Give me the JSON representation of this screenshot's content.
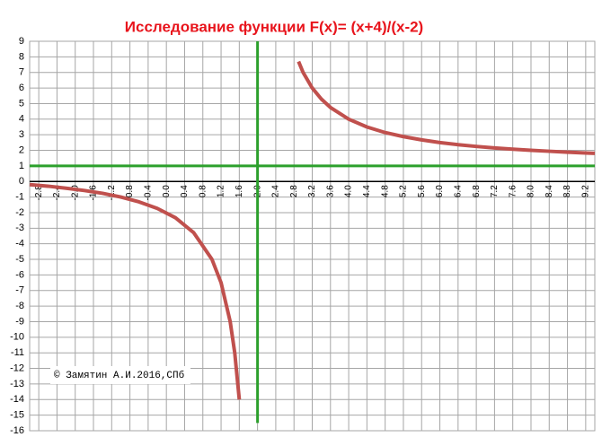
{
  "chart_data": {
    "type": "line",
    "title": "Исследование функции F(x)= (x+4)/(x-2)",
    "annotation": "© Замятин А.И.2016,СПб",
    "x": [
      -3,
      -2.6,
      -2.2,
      -1.8,
      -1.4,
      -1.0,
      -0.6,
      -0.2,
      0.2,
      0.6,
      1.0,
      1.2,
      1.4,
      1.5,
      1.6,
      2.0,
      2.9,
      3.0,
      3.2,
      3.4,
      3.6,
      4.0,
      4.4,
      4.8,
      5.2,
      5.6,
      6.0,
      6.4,
      6.8,
      7.2,
      7.6,
      8.0,
      8.4,
      8.8,
      9.2,
      9.4
    ],
    "series": [
      {
        "color": "#c0504d",
        "values": [
          -0.2,
          -0.3,
          -0.43,
          -0.58,
          -0.76,
          -1,
          -1.31,
          -1.73,
          -2.33,
          -3.29,
          -5,
          -6.5,
          -9,
          -11,
          -14,
          null,
          7.7,
          7,
          6,
          5.29,
          4.75,
          4,
          3.5,
          3.14,
          2.88,
          2.67,
          2.5,
          2.36,
          2.25,
          2.15,
          2.07,
          2,
          1.94,
          1.88,
          1.83,
          1.81
        ]
      }
    ],
    "vlines": [
      2
    ],
    "hlines": [
      1
    ],
    "line_color": "#2ca02c",
    "xlim": [
      -3,
      9.4
    ],
    "ylim": [
      -16,
      9
    ],
    "xticks": [
      -2.8,
      -2.4,
      {
        "value": -2,
        "label": "-2.0"
      },
      -1.6,
      -1.2,
      -0.8,
      -0.4,
      {
        "value": 0,
        "label": "0.0"
      },
      0.4,
      0.8,
      1.2,
      1.6,
      {
        "value": 2,
        "label": "2.0"
      },
      2.4,
      2.8,
      3.2,
      3.6,
      {
        "value": 4,
        "label": "4.0"
      },
      4.4,
      4.8,
      5.2,
      5.6,
      {
        "value": 6,
        "label": "6.0"
      },
      6.4,
      6.8,
      7.2,
      7.6,
      {
        "value": 8,
        "label": "8.0"
      },
      8.4,
      8.8,
      9.2
    ],
    "yticks": [
      9,
      8,
      7,
      6,
      5,
      4,
      3,
      2,
      1,
      0,
      -1,
      -2,
      -3,
      -4,
      -5,
      -6,
      -7,
      -8,
      -9,
      -10,
      -11,
      -12,
      -13,
      -14,
      -15,
      -16
    ],
    "grid": true
  }
}
